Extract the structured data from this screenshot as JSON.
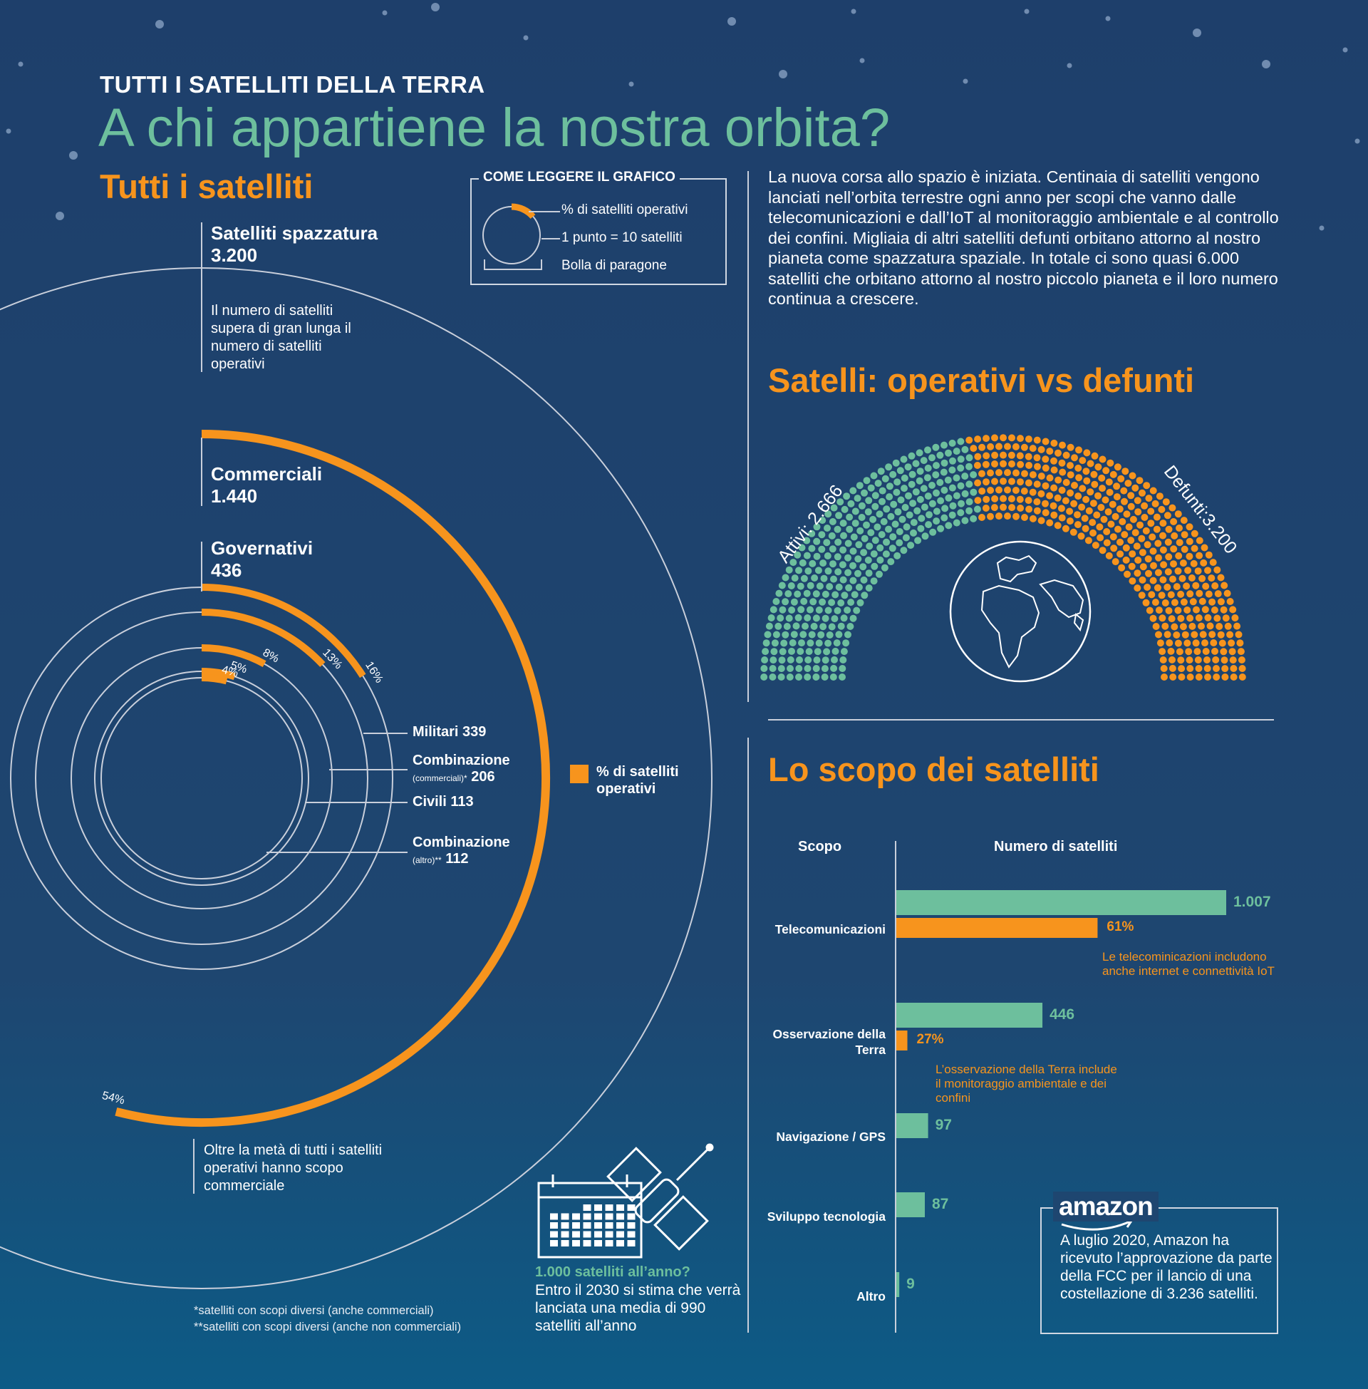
{
  "header": {
    "kicker": "TUTTI I SATELLITI DELLA TERRA",
    "title": "A chi appartiene la nostra orbita?"
  },
  "colors": {
    "background": "#1e4670",
    "accent_orange": "#f7941d",
    "accent_green": "#6dbf9d",
    "line": "#c9cfdb"
  },
  "left": {
    "section_title": "Tutti i satelliti",
    "junk_label": "Satelliti spazzatura",
    "junk_value": "3.200",
    "junk_note": "Il numero di satelliti supera di gran lunga il numero di satelliti operativi",
    "commercial_label": "Commerciali",
    "commercial_value": "1.440",
    "gov_label": "Governativi",
    "gov_value": "436",
    "ring_labels": {
      "military": "Militari 339",
      "combo_comm_name": "Combinazione",
      "combo_comm_small": "(commerciali)*",
      "combo_comm_value": "206",
      "civil": "Civili 113",
      "combo_other_name": "Combinazione",
      "combo_other_small": "(altro)**",
      "combo_other_value": "112"
    },
    "legend_label": "% di satelliti operativi",
    "bottom_note": "Oltre la metà di tutti i satelliti operativi hanno scopo commerciale",
    "footnote1": "*satelliti con scopi diversi (anche commerciali)",
    "footnote2": "**satelliti con scopi diversi (anche non commerciali)"
  },
  "legend": {
    "title": "COME LEGGERE IL GRAFICO",
    "item1": "% di satelliti operativi",
    "item2": "1 punto = 10 satelliti",
    "item3": "Bolla di paragone"
  },
  "intro_text": "La nuova corsa allo spazio è iniziata. Centinaia di satelliti vengono lanciati nell’orbita terrestre ogni anno per scopi che vanno dalle telecomunicazioni e dall’IoT al monitoraggio ambientale e al controllo dei confini. Migliaia di altri satelliti defunti orbitano attorno al nostro pianeta come spazzatura spaziale. In totale ci sono quasi 6.000 satelliti che orbitano attorno al nostro piccolo pianeta e il loro numero continua a crescere.",
  "operative": {
    "section_title": "Satelli: operativi vs defunti",
    "active_label": "Attivi: 2.666",
    "defunct_label": "Defunti:3.200"
  },
  "purpose": {
    "section_title": "Lo scopo dei satelliti",
    "col_purpose": "Scopo",
    "col_count": "Numero di satelliti",
    "telecom_note": "Le telecominicazioni includono anche internet e connettività IoT",
    "earthobs_note": "L’osservazione della Terra include il monitoraggio ambientale e dei confini"
  },
  "callout": {
    "title": "1.000 satelliti all’anno?",
    "text": "Entro il 2030 si stima che verrà lanciata una media di 990 satelliti all’anno"
  },
  "amazon": {
    "logo": "amazon",
    "text": "A luglio 2020, Amazon ha ricevuto l’approvazione da parte della FCC per il lancio di una costellazione di 3.236 satelliti."
  },
  "chart_data": [
    {
      "type": "radial-bar",
      "categories": [
        "Commerciali",
        "Governativi",
        "Militari",
        "Combinazione (commerciali)",
        "Civili",
        "Combinazione (altro)"
      ],
      "values": [
        1440,
        436,
        339,
        206,
        113,
        112
      ],
      "percent_operative": [
        54,
        16,
        13,
        8,
        5,
        4
      ],
      "percent_labels": [
        "54%",
        "16%",
        "13%",
        "8%",
        "5%",
        "4%"
      ]
    },
    {
      "type": "dot-semicircle",
      "series": [
        {
          "name": "Attivi",
          "value": 2666
        },
        {
          "name": "Defunti",
          "value": 3200
        }
      ]
    },
    {
      "type": "bar",
      "categories": [
        "Telecomunicazioni",
        "Osservazione della Terra",
        "Navigazione / GPS",
        "Sviluppo tecnologia",
        "Altro"
      ],
      "values": [
        1007,
        446,
        97,
        87,
        9
      ],
      "value_labels": [
        "1.007",
        "446",
        "97",
        "87",
        "9"
      ],
      "secondary_percent": [
        61,
        27,
        null,
        null,
        null
      ],
      "secondary_labels": [
        "61%",
        "27%",
        "",
        "",
        ""
      ],
      "xlim": [
        0,
        1007
      ]
    }
  ]
}
